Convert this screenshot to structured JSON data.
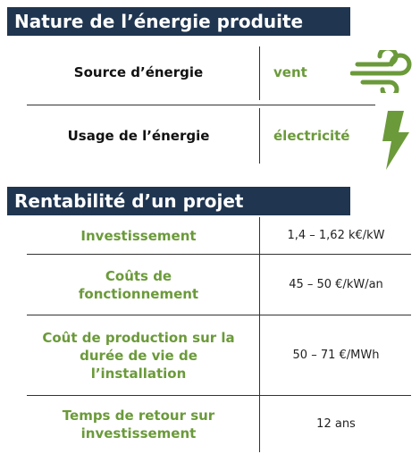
{
  "nature": {
    "title": "Nature de l’énergie produite",
    "rows": [
      {
        "label": "Source d’énergie",
        "value": "vent"
      },
      {
        "label": "Usage de l’énergie",
        "value": "électricité"
      }
    ]
  },
  "rentabilite": {
    "title": "Rentabilité d’un projet",
    "rows": [
      {
        "label": [
          "Investissement"
        ],
        "value": "1,4 – 1,62 k€/kW"
      },
      {
        "label": [
          "Coûts de",
          "fonctionnement"
        ],
        "value": "45 – 50 €/kW/an"
      },
      {
        "label": [
          "Coût de production sur la",
          "durée de vie de",
          "l’installation"
        ],
        "value": "50 – 71 €/MWh"
      },
      {
        "label": [
          "Temps de retour sur",
          "investissement"
        ],
        "value": "12 ans"
      }
    ]
  }
}
